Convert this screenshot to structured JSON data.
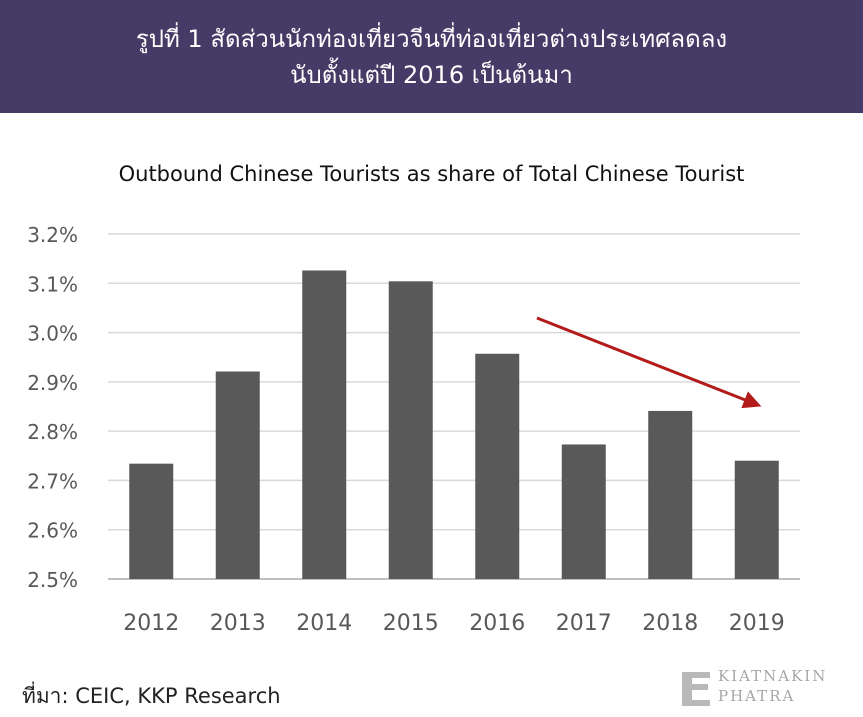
{
  "header": {
    "line1": "รูปที่ 1 สัดส่วนนักท่องเที่ยวจีนที่ท่องเที่ยวต่างประเทศลดลง",
    "line2": "นับตั้งแต่ปี 2016 เป็นต้นมา"
  },
  "source": "ที่มา: CEIC, KKP Research",
  "logo": {
    "line1": "KIATNAKIN",
    "line2": "PHATRA"
  },
  "colors": {
    "header_bg": "#463a66",
    "bar": "#595959",
    "arrow": "#b31b1b",
    "grid": "#d9d9d9"
  },
  "chart_data": {
    "type": "bar",
    "title": "Outbound Chinese Tourists as share of Total Chinese Tourist",
    "categories": [
      "2012",
      "2013",
      "2014",
      "2015",
      "2016",
      "2017",
      "2018",
      "2019"
    ],
    "values": [
      2.734,
      2.921,
      3.126,
      3.104,
      2.957,
      2.773,
      2.841,
      2.74
    ],
    "ylim": [
      2.5,
      3.2
    ],
    "yticks": [
      "2.5%",
      "2.6%",
      "2.7%",
      "2.8%",
      "2.9%",
      "3.0%",
      "3.1%",
      "3.2%"
    ],
    "grid": true,
    "annotation": "red downward-trend arrow from 2016 to 2019"
  }
}
